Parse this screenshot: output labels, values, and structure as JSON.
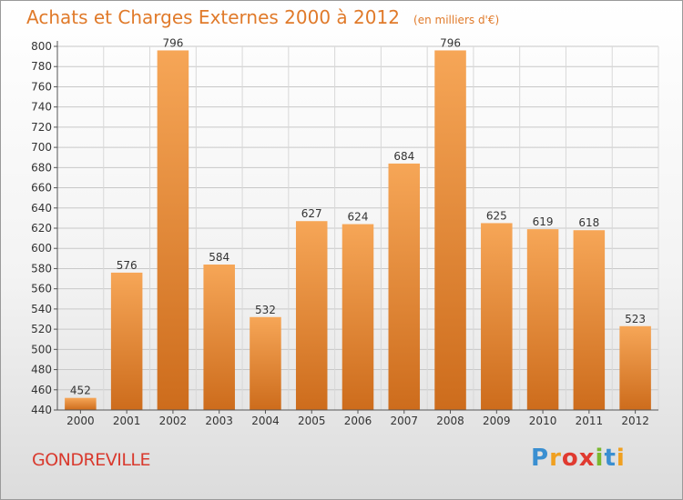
{
  "chart_data": {
    "type": "bar",
    "title": "Achats et Charges Externes 2000 à 2012",
    "subtitle": "(en milliers d'€)",
    "categories": [
      "2000",
      "2001",
      "2002",
      "2003",
      "2004",
      "2005",
      "2006",
      "2007",
      "2008",
      "2009",
      "2010",
      "2011",
      "2012"
    ],
    "values": [
      452,
      576,
      796,
      584,
      532,
      627,
      624,
      684,
      796,
      625,
      619,
      618,
      523
    ],
    "ylim": [
      440,
      800
    ],
    "yticks": [
      440,
      460,
      480,
      500,
      520,
      540,
      560,
      580,
      600,
      620,
      640,
      660,
      680,
      700,
      720,
      740,
      760,
      780,
      800
    ],
    "grid": true,
    "bar_color": "#f0913a",
    "bar_color_dark": "#d0701f",
    "label_color": "#333333"
  },
  "footer": {
    "commune": "GONDREVILLE",
    "commune_color": "#d93a2e"
  },
  "logo": {
    "text": "Proxiti",
    "letter_colors": [
      "#3a8fd1",
      "#f0a020",
      "#e03a30",
      "#e03a30",
      "#7ab82e",
      "#3a8fd1",
      "#f0a020"
    ]
  }
}
